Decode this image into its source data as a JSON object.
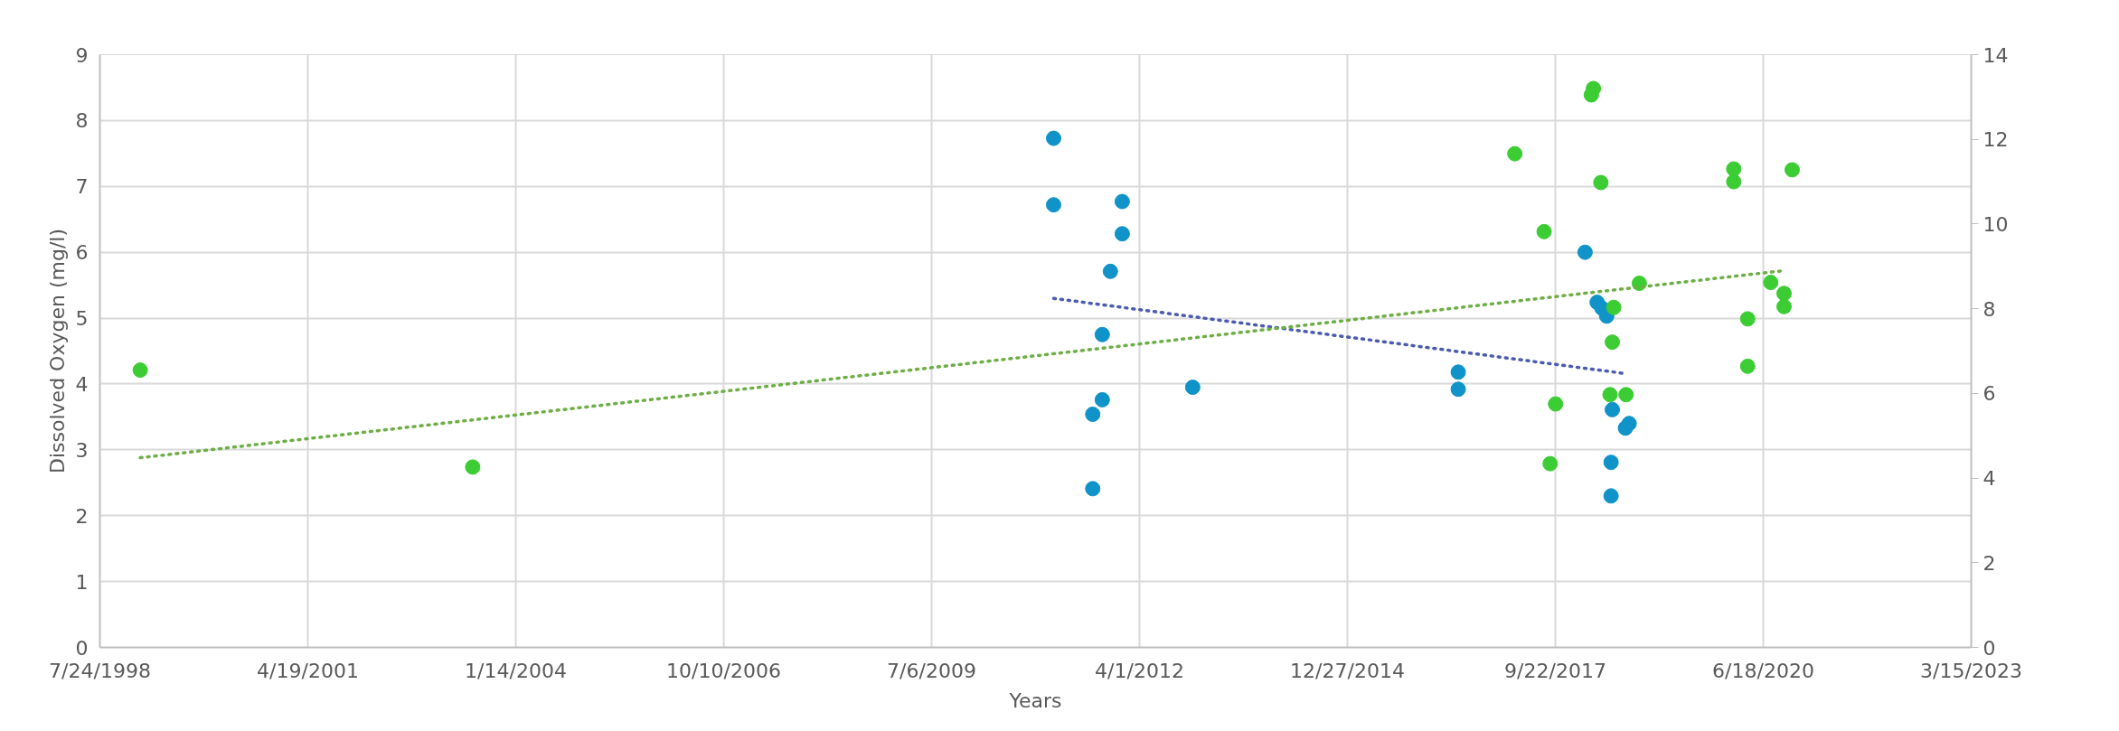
{
  "chart_data": {
    "type": "scatter",
    "xlabel": "Years",
    "ylabel": "Dissolved Oxygen (mg/l)",
    "xlim": [
      "1998-07-24",
      "2023-03-15"
    ],
    "xticks": [
      {
        "value": "1998-07-24",
        "label": "7/24/1998"
      },
      {
        "value": "2001-04-19",
        "label": "4/19/2001"
      },
      {
        "value": "2004-01-14",
        "label": "1/14/2004"
      },
      {
        "value": "2006-10-10",
        "label": "10/10/2006"
      },
      {
        "value": "2009-07-06",
        "label": "7/6/2009"
      },
      {
        "value": "2012-04-01",
        "label": "4/1/2012"
      },
      {
        "value": "2014-12-27",
        "label": "12/27/2014"
      },
      {
        "value": "2017-09-22",
        "label": "9/22/2017"
      },
      {
        "value": "2020-06-18",
        "label": "6/18/2020"
      },
      {
        "value": "2023-03-15",
        "label": "3/15/2023"
      }
    ],
    "ylim": [
      0,
      9
    ],
    "yticks": [
      0,
      1,
      2,
      3,
      4,
      5,
      6,
      7,
      8,
      9
    ],
    "y2lim": [
      0,
      14
    ],
    "y2ticks": [
      0,
      2,
      4,
      6,
      8,
      10,
      12,
      14
    ],
    "grid": true,
    "marker": "circle",
    "series": [
      {
        "color": "#0f93c8",
        "x": [
          "2011-02-13",
          "2011-02-13",
          "2012-01-09",
          "2012-01-09",
          "2011-11-13",
          "2011-10-05",
          "2011-10-05",
          "2011-08-20",
          "2011-08-20",
          "2012-12-13",
          "2016-06-12",
          "2016-06-12",
          "2018-02-12",
          "2018-04-11",
          "2018-05-04",
          "2018-05-27",
          "2018-06-23",
          "2018-09-12",
          "2018-08-25",
          "2018-06-17",
          "2018-06-17"
        ],
        "values": [
          7.73,
          6.72,
          6.77,
          6.28,
          5.71,
          4.75,
          3.76,
          3.54,
          2.41,
          3.95,
          4.18,
          3.92,
          6.0,
          5.24,
          5.15,
          5.03,
          3.61,
          3.4,
          3.33,
          2.81,
          2.3
        ]
      },
      {
        "axis": "y2",
        "color": "#3ccc33",
        "x": [
          "1999-02-03",
          "2003-06-21",
          "2018-03-14",
          "2018-03-24",
          "2017-03-11",
          "2018-04-29",
          "2017-07-30",
          "2018-10-31",
          "2018-06-30",
          "2018-06-23",
          "2018-06-12",
          "2018-08-28",
          "2017-09-23",
          "2017-08-28",
          "2020-01-28",
          "2020-01-28",
          "2020-11-04",
          "2020-04-04",
          "2020-04-04",
          "2020-07-24",
          "2020-09-26",
          "2020-09-26"
        ],
        "values": [
          6.55,
          4.26,
          13.05,
          13.2,
          11.66,
          10.98,
          9.82,
          8.6,
          8.03,
          7.21,
          5.97,
          5.97,
          5.75,
          4.34,
          11.3,
          11.0,
          11.28,
          7.76,
          6.64,
          8.62,
          8.36,
          8.05
        ]
      },
      {
        "type": "line",
        "line_style": "dotted",
        "marker": "none",
        "color": "#4a5bb0",
        "x": [
          "2011-02-13",
          "2018-08-20"
        ],
        "values": [
          5.3,
          4.16
        ]
      },
      {
        "type": "line",
        "axis": "y2",
        "line_style": "dotted",
        "marker": "none",
        "color": "#6fae47",
        "x": [
          "1999-02-03",
          "2020-09-26"
        ],
        "values": [
          4.48,
          8.9
        ]
      }
    ]
  }
}
